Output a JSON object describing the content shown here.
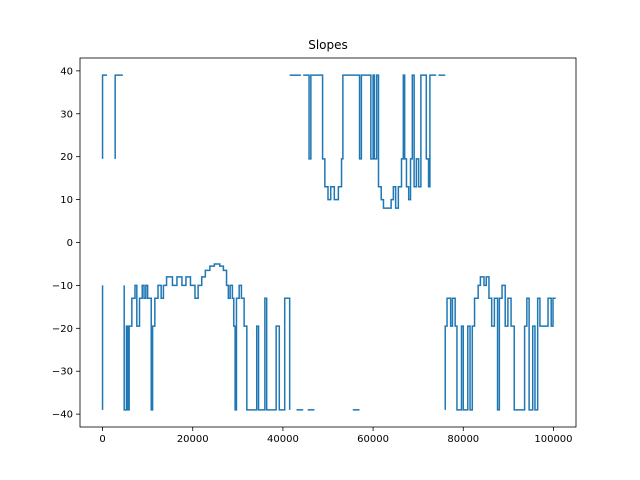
{
  "chart_data": {
    "type": "line",
    "title": "Slopes",
    "xlabel": "",
    "ylabel": "",
    "xlim": [
      -5000,
      105000
    ],
    "ylim": [
      -43,
      43
    ],
    "x_ticks": [
      0,
      20000,
      40000,
      60000,
      80000,
      100000
    ],
    "x_tick_labels": [
      "0",
      "20000",
      "40000",
      "60000",
      "80000",
      "100000"
    ],
    "y_ticks": [
      -40,
      -30,
      -20,
      -10,
      0,
      10,
      20,
      30,
      40
    ],
    "y_tick_labels": [
      "−40",
      "−30",
      "−20",
      "−10",
      "0",
      "10",
      "20",
      "30",
      "40"
    ],
    "grid": false,
    "legend": "none",
    "series": [
      {
        "color": "#1f77b4",
        "segments": [
          [
            [
              0,
              19.5
            ],
            [
              0,
              39
            ],
            [
              1000,
              39
            ]
          ],
          [
            [
              2800,
              39
            ],
            [
              2800,
              19.5
            ],
            [
              2800,
              39
            ],
            [
              4500,
              39
            ]
          ],
          [
            [
              0,
              -10
            ],
            [
              0,
              -39
            ],
            [
              0,
              -10
            ]
          ],
          [
            [
              4800,
              -10
            ],
            [
              4800,
              -39
            ],
            [
              5300,
              -39
            ],
            [
              5300,
              -19.5
            ],
            [
              5600,
              -19.5
            ],
            [
              5600,
              -39
            ],
            [
              5900,
              -39
            ],
            [
              5900,
              -19.5
            ],
            [
              6500,
              -19.5
            ],
            [
              6500,
              -13
            ],
            [
              7200,
              -13
            ],
            [
              7200,
              -10
            ],
            [
              7600,
              -10
            ],
            [
              7600,
              -19.5
            ],
            [
              8200,
              -19.5
            ],
            [
              8200,
              -13
            ],
            [
              8800,
              -13
            ],
            [
              8800,
              -10
            ],
            [
              9200,
              -10
            ],
            [
              9200,
              -13
            ],
            [
              9600,
              -13
            ],
            [
              9600,
              -10
            ],
            [
              10000,
              -10
            ],
            [
              10000,
              -13
            ],
            [
              10800,
              -13
            ],
            [
              10800,
              -39
            ],
            [
              11100,
              -39
            ],
            [
              11100,
              -19.5
            ],
            [
              11600,
              -19.5
            ],
            [
              11600,
              -13
            ],
            [
              12300,
              -13
            ],
            [
              12300,
              -10
            ],
            [
              13000,
              -10
            ],
            [
              13000,
              -13
            ],
            [
              13500,
              -13
            ],
            [
              13500,
              -10
            ],
            [
              14200,
              -10
            ],
            [
              14200,
              -8
            ],
            [
              15500,
              -8
            ],
            [
              15500,
              -10
            ],
            [
              16500,
              -10
            ],
            [
              16500,
              -8
            ],
            [
              17600,
              -8
            ],
            [
              17600,
              -10
            ],
            [
              18500,
              -10
            ],
            [
              18500,
              -8
            ],
            [
              19500,
              -8
            ],
            [
              19500,
              -10
            ],
            [
              20500,
              -10
            ],
            [
              20500,
              -13
            ],
            [
              21200,
              -13
            ],
            [
              21200,
              -10
            ],
            [
              22000,
              -10
            ],
            [
              22000,
              -8
            ],
            [
              22800,
              -8
            ],
            [
              22800,
              -6.5
            ],
            [
              23800,
              -6.5
            ],
            [
              23800,
              -5.5
            ],
            [
              24800,
              -5.5
            ],
            [
              24800,
              -5
            ],
            [
              26000,
              -5
            ],
            [
              26000,
              -5.5
            ],
            [
              26800,
              -5.5
            ],
            [
              26800,
              -6.5
            ],
            [
              27500,
              -6.5
            ],
            [
              27500,
              -10
            ],
            [
              27900,
              -10
            ],
            [
              27900,
              -13
            ],
            [
              28300,
              -13
            ],
            [
              28300,
              -10
            ],
            [
              28800,
              -10
            ],
            [
              28800,
              -13
            ],
            [
              29100,
              -13
            ],
            [
              29100,
              -19.5
            ],
            [
              29400,
              -19.5
            ],
            [
              29400,
              -39
            ],
            [
              29700,
              -39
            ],
            [
              29700,
              -13
            ],
            [
              30300,
              -13
            ],
            [
              30300,
              -10
            ],
            [
              30800,
              -10
            ],
            [
              30800,
              -13
            ],
            [
              31400,
              -13
            ],
            [
              31400,
              -19.5
            ],
            [
              32000,
              -19.5
            ],
            [
              32000,
              -39
            ],
            [
              34200,
              -39
            ],
            [
              34200,
              -19.5
            ],
            [
              34600,
              -19.5
            ],
            [
              34600,
              -39
            ],
            [
              36000,
              -39
            ],
            [
              36000,
              -13
            ],
            [
              36400,
              -13
            ],
            [
              36400,
              -39
            ],
            [
              38500,
              -39
            ],
            [
              38500,
              -19.5
            ],
            [
              39200,
              -19.5
            ],
            [
              39200,
              -39
            ],
            [
              40400,
              -39
            ],
            [
              40400,
              -13
            ],
            [
              41500,
              -13
            ],
            [
              41500,
              -39
            ]
          ],
          [
            [
              43000,
              -39
            ],
            [
              44500,
              -39
            ]
          ],
          [
            [
              45500,
              -39
            ],
            [
              47000,
              -39
            ]
          ],
          [
            [
              55500,
              -39
            ],
            [
              57000,
              -39
            ]
          ],
          [
            [
              41500,
              39
            ],
            [
              44000,
              39
            ]
          ],
          [
            [
              44500,
              39
            ],
            [
              45800,
              39
            ],
            [
              45800,
              19.5
            ],
            [
              46200,
              19.5
            ],
            [
              46200,
              39
            ],
            [
              48800,
              39
            ],
            [
              48800,
              19.5
            ],
            [
              49300,
              19.5
            ],
            [
              49300,
              13
            ],
            [
              50000,
              13
            ],
            [
              50000,
              10
            ],
            [
              50600,
              10
            ],
            [
              50600,
              13
            ],
            [
              51400,
              13
            ],
            [
              51400,
              10
            ],
            [
              52300,
              10
            ],
            [
              52300,
              13
            ],
            [
              53000,
              13
            ],
            [
              53000,
              19.5
            ],
            [
              53300,
              19.5
            ],
            [
              53300,
              39
            ],
            [
              57000,
              39
            ],
            [
              57000,
              19.5
            ],
            [
              57400,
              19.5
            ],
            [
              57400,
              39
            ],
            [
              59500,
              39
            ],
            [
              59500,
              19.5
            ],
            [
              60000,
              19.5
            ],
            [
              60000,
              39
            ],
            [
              60300,
              39
            ],
            [
              60300,
              19.5
            ],
            [
              60800,
              19.5
            ],
            [
              60800,
              39
            ],
            [
              61200,
              39
            ],
            [
              61200,
              13
            ],
            [
              61800,
              13
            ],
            [
              61800,
              10
            ],
            [
              62300,
              10
            ],
            [
              62300,
              8
            ],
            [
              64000,
              8
            ],
            [
              64000,
              10
            ],
            [
              64500,
              10
            ],
            [
              64500,
              13
            ],
            [
              65000,
              13
            ],
            [
              65000,
              8
            ],
            [
              65600,
              8
            ],
            [
              65600,
              13
            ],
            [
              66300,
              13
            ],
            [
              66300,
              19.5
            ],
            [
              66700,
              19.5
            ],
            [
              66700,
              39
            ],
            [
              67000,
              39
            ],
            [
              67000,
              19.5
            ],
            [
              67400,
              19.5
            ],
            [
              67400,
              13
            ],
            [
              67900,
              13
            ],
            [
              67900,
              10
            ],
            [
              68300,
              10
            ],
            [
              68300,
              19.5
            ],
            [
              68700,
              19.5
            ],
            [
              68700,
              39
            ],
            [
              69100,
              39
            ],
            [
              69100,
              13
            ],
            [
              69600,
              13
            ],
            [
              69600,
              19.5
            ],
            [
              70100,
              19.5
            ],
            [
              70100,
              13
            ],
            [
              70600,
              13
            ],
            [
              70600,
              39
            ],
            [
              71800,
              39
            ],
            [
              71800,
              19.5
            ],
            [
              72300,
              19.5
            ],
            [
              72300,
              13
            ],
            [
              72600,
              13
            ],
            [
              72600,
              39
            ],
            [
              74000,
              39
            ]
          ],
          [
            [
              74500,
              39
            ],
            [
              76000,
              39
            ]
          ],
          [
            [
              76000,
              -39
            ],
            [
              76000,
              -19.5
            ],
            [
              76400,
              -19.5
            ],
            [
              76400,
              -13
            ],
            [
              77200,
              -13
            ],
            [
              77200,
              -19.5
            ],
            [
              77600,
              -19.5
            ],
            [
              77600,
              -13
            ],
            [
              78200,
              -13
            ],
            [
              78200,
              -19.5
            ],
            [
              78600,
              -19.5
            ],
            [
              78600,
              -39
            ],
            [
              79600,
              -39
            ],
            [
              79600,
              -19.5
            ],
            [
              80000,
              -19.5
            ],
            [
              80000,
              -39
            ],
            [
              81000,
              -39
            ],
            [
              81000,
              -19.5
            ],
            [
              81500,
              -19.5
            ],
            [
              81500,
              -39
            ],
            [
              82000,
              -39
            ],
            [
              82000,
              -19.5
            ],
            [
              82500,
              -19.5
            ],
            [
              82500,
              -13
            ],
            [
              83300,
              -13
            ],
            [
              83300,
              -10
            ],
            [
              83800,
              -10
            ],
            [
              83800,
              -8
            ],
            [
              84600,
              -8
            ],
            [
              84600,
              -10
            ],
            [
              85100,
              -10
            ],
            [
              85100,
              -8
            ],
            [
              85700,
              -8
            ],
            [
              85700,
              -13
            ],
            [
              86300,
              -13
            ],
            [
              86300,
              -19.5
            ],
            [
              86900,
              -19.5
            ],
            [
              86900,
              -13
            ],
            [
              87600,
              -13
            ],
            [
              87600,
              -39
            ],
            [
              88000,
              -39
            ],
            [
              88000,
              -13
            ],
            [
              88600,
              -13
            ],
            [
              88600,
              -10
            ],
            [
              89300,
              -10
            ],
            [
              89300,
              -19.5
            ],
            [
              89900,
              -19.5
            ],
            [
              89900,
              -13
            ],
            [
              90600,
              -13
            ],
            [
              90600,
              -19.5
            ],
            [
              91300,
              -19.5
            ],
            [
              91300,
              -39
            ],
            [
              93600,
              -39
            ],
            [
              93600,
              -19.5
            ],
            [
              94100,
              -19.5
            ],
            [
              94100,
              -13
            ],
            [
              94600,
              -13
            ],
            [
              94600,
              -39
            ],
            [
              95400,
              -39
            ],
            [
              95400,
              -19.5
            ],
            [
              95900,
              -19.5
            ],
            [
              95900,
              -39
            ],
            [
              96500,
              -39
            ],
            [
              96500,
              -13
            ],
            [
              97000,
              -13
            ],
            [
              97000,
              -19.5
            ],
            [
              98800,
              -19.5
            ],
            [
              98800,
              -13
            ],
            [
              99500,
              -13
            ],
            [
              99500,
              -19.5
            ],
            [
              99900,
              -19.5
            ],
            [
              99900,
              -13
            ],
            [
              100500,
              -13
            ]
          ]
        ]
      }
    ]
  }
}
